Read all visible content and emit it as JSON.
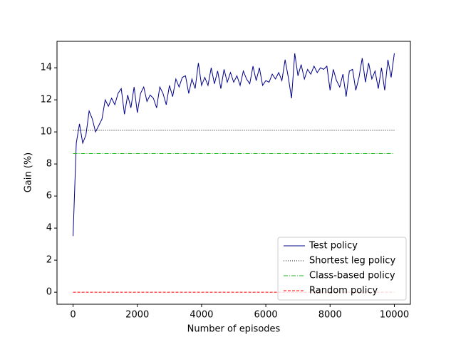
{
  "chart_data": {
    "type": "line",
    "xlabel": "Number of episodes",
    "ylabel": "Gain (%)",
    "xlim": [
      -500,
      10500
    ],
    "ylim": [
      -0.75,
      15.65
    ],
    "xticks": [
      0,
      2000,
      4000,
      6000,
      8000,
      10000
    ],
    "yticks": [
      0,
      2,
      4,
      6,
      8,
      10,
      12,
      14
    ],
    "legend": "lower right",
    "series": [
      {
        "name": "Test policy",
        "color": "#00008b",
        "linestyle": "solid",
        "x": [
          0,
          100,
          200,
          300,
          400,
          500,
          600,
          700,
          800,
          900,
          1000,
          1100,
          1200,
          1300,
          1400,
          1500,
          1600,
          1700,
          1800,
          1900,
          2000,
          2100,
          2200,
          2300,
          2400,
          2500,
          2600,
          2700,
          2800,
          2900,
          3000,
          3100,
          3200,
          3300,
          3400,
          3500,
          3600,
          3700,
          3800,
          3900,
          4000,
          4100,
          4200,
          4300,
          4400,
          4500,
          4600,
          4700,
          4800,
          4900,
          5000,
          5100,
          5200,
          5300,
          5400,
          5500,
          5600,
          5700,
          5800,
          5900,
          6000,
          6100,
          6200,
          6300,
          6400,
          6500,
          6600,
          6700,
          6800,
          6900,
          7000,
          7100,
          7200,
          7300,
          7400,
          7500,
          7600,
          7700,
          7800,
          7900,
          8000,
          8100,
          8200,
          8300,
          8400,
          8500,
          8600,
          8700,
          8800,
          8900,
          9000,
          9100,
          9200,
          9300,
          9400,
          9500,
          9600,
          9700,
          9800,
          9900,
          10000
        ],
        "values": [
          3.5,
          9.3,
          10.5,
          9.3,
          9.8,
          11.3,
          10.8,
          10.0,
          10.4,
          10.8,
          12.0,
          11.6,
          12.1,
          11.7,
          12.4,
          12.7,
          11.1,
          12.3,
          11.5,
          12.8,
          11.2,
          12.4,
          12.8,
          11.9,
          12.3,
          12.1,
          11.5,
          12.8,
          12.4,
          11.7,
          12.9,
          12.2,
          13.3,
          12.8,
          13.4,
          13.5,
          12.4,
          13.3,
          12.7,
          14.3,
          12.9,
          13.4,
          12.9,
          14.0,
          13.0,
          13.8,
          12.7,
          13.9,
          13.1,
          13.7,
          13.1,
          13.5,
          12.9,
          13.8,
          13.3,
          13.0,
          14.1,
          13.2,
          14.0,
          12.9,
          13.2,
          13.1,
          13.6,
          13.3,
          13.7,
          13.2,
          14.5,
          13.4,
          12.1,
          14.9,
          13.5,
          14.2,
          13.3,
          13.9,
          13.6,
          14.1,
          13.7,
          14.0,
          13.9,
          14.1,
          12.6,
          13.9,
          13.2,
          12.8,
          13.6,
          12.2,
          13.8,
          13.9,
          12.6,
          13.4,
          14.6,
          13.1,
          14.3,
          13.3,
          13.8,
          12.7,
          14.0,
          12.6,
          14.5,
          13.4,
          14.9
        ]
      },
      {
        "name": "Shortest leg policy",
        "color": "#000000",
        "linestyle": "dotted",
        "x": [
          0,
          10000
        ],
        "values": [
          10.1,
          10.1
        ]
      },
      {
        "name": "Class-based policy",
        "color": "#22bb22",
        "linestyle": "dashdot",
        "x": [
          0,
          10000
        ],
        "values": [
          8.65,
          8.65
        ]
      },
      {
        "name": "Random policy",
        "color": "#ff0000",
        "linestyle": "dashed",
        "x": [
          0,
          10000
        ],
        "values": [
          0,
          0
        ]
      }
    ]
  }
}
